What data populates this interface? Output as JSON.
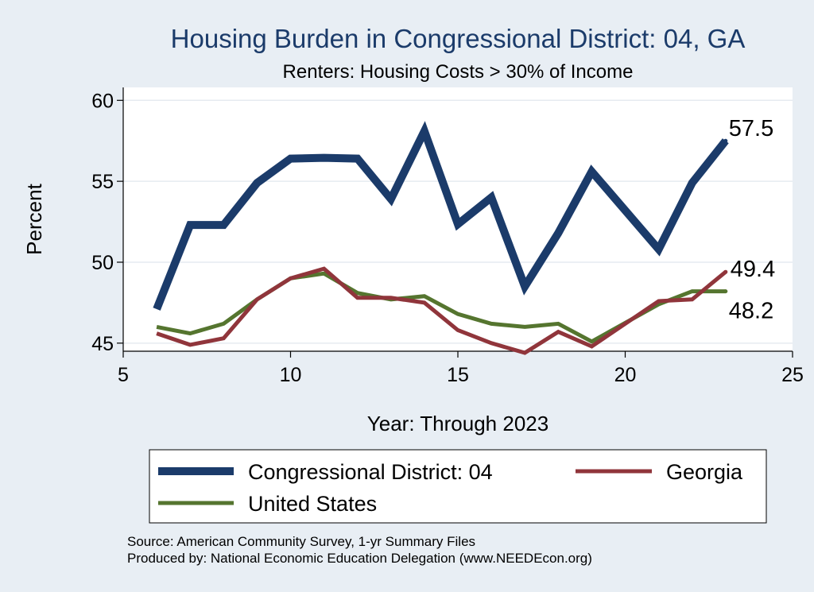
{
  "chart_data": {
    "type": "line",
    "title": "Housing Burden in Congressional District:  04, GA",
    "subtitle": "Renters: Housing Costs > 30% of Income",
    "xlabel": "Year: Through 2023",
    "ylabel": "Percent",
    "xlim": [
      5,
      25
    ],
    "ylim": [
      44.5,
      60.8
    ],
    "xticks": [
      5,
      10,
      15,
      20,
      25
    ],
    "yticks": [
      45,
      50,
      55,
      60
    ],
    "grid": true,
    "legend_position": "bottom",
    "series": [
      {
        "name": "Congressional District:  04",
        "color": "#1b3b6a",
        "x": [
          6,
          7,
          8,
          9,
          10,
          11,
          12,
          13,
          14,
          15,
          16,
          17,
          18,
          19,
          21,
          22,
          23
        ],
        "values": [
          47.1,
          52.3,
          52.3,
          54.9,
          56.4,
          56.45,
          56.4,
          53.9,
          58.1,
          52.35,
          54.0,
          48.5,
          51.8,
          55.6,
          50.8,
          54.9,
          57.5
        ],
        "end_label": "57.5"
      },
      {
        "name": "Georgia",
        "color": "#90353b",
        "x": [
          6,
          7,
          8,
          9,
          10,
          11,
          12,
          13,
          14,
          15,
          16,
          17,
          18,
          19,
          21,
          22,
          23
        ],
        "values": [
          45.6,
          44.9,
          45.3,
          47.7,
          49.0,
          49.6,
          47.8,
          47.8,
          47.5,
          45.8,
          45.0,
          44.4,
          45.7,
          44.8,
          47.6,
          47.7,
          49.4
        ],
        "end_label": "49.4"
      },
      {
        "name": "United States",
        "color": "#55752f",
        "x": [
          6,
          7,
          8,
          9,
          10,
          11,
          12,
          13,
          14,
          15,
          16,
          17,
          18,
          19,
          21,
          22,
          23
        ],
        "values": [
          46.0,
          45.6,
          46.2,
          47.7,
          49.0,
          49.3,
          48.1,
          47.7,
          47.9,
          46.8,
          46.2,
          46.0,
          46.2,
          45.1,
          47.4,
          48.2,
          48.2
        ],
        "end_label": "48.2"
      }
    ],
    "legend": {
      "items": [
        "Congressional District:  04",
        "Georgia",
        "United States"
      ]
    }
  },
  "source": {
    "line1": "Source: American Community Survey, 1-yr Summary Files",
    "line2": "Produced by: National Economic Education Delegation (www.NEEDEcon.org)"
  }
}
